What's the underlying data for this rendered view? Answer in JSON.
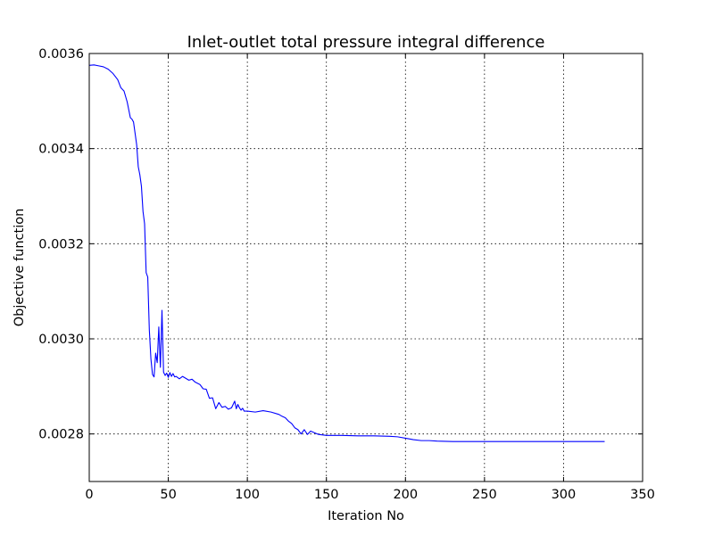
{
  "chart_data": {
    "type": "line",
    "title": "Inlet-outlet total pressure integral difference",
    "xlabel": "Iteration No",
    "ylabel": "Objective function",
    "xlim": [
      0,
      350
    ],
    "ylim": [
      0.0027,
      0.0036
    ],
    "xticks": [
      0,
      50,
      100,
      150,
      200,
      250,
      300,
      350
    ],
    "xtick_labels": [
      "0",
      "50",
      "100",
      "150",
      "200",
      "250",
      "300",
      "350"
    ],
    "yticks": [
      0.0028,
      0.003,
      0.0032,
      0.0034,
      0.0036
    ],
    "ytick_labels": [
      "0.0028",
      "0.0030",
      "0.0032",
      "0.0034",
      "0.0036"
    ],
    "grid": true,
    "series": [
      {
        "color": "#0000ff",
        "x": [
          0,
          3,
          6,
          9,
          12,
          15,
          18,
          20,
          22,
          24,
          26,
          27,
          28,
          29,
          30,
          31,
          32,
          33,
          34,
          35,
          36,
          37,
          38,
          39,
          40,
          41,
          42,
          43,
          44,
          45,
          46,
          47,
          48,
          49,
          50,
          51,
          52,
          53,
          54,
          55,
          57,
          59,
          61,
          63,
          65,
          67,
          70,
          72,
          74,
          76,
          78,
          80,
          82,
          84,
          86,
          88,
          90,
          92,
          93,
          94,
          95,
          96,
          97,
          98,
          100,
          105,
          110,
          115,
          120,
          122,
          124,
          126,
          128,
          130,
          132,
          134,
          136,
          138,
          140,
          145,
          150,
          160,
          170,
          180,
          190,
          195,
          200,
          205,
          210,
          215,
          220,
          230,
          240,
          250,
          260,
          270,
          280,
          290,
          300,
          310,
          320,
          326
        ],
        "y": [
          0.003575,
          0.003576,
          0.003574,
          0.003572,
          0.003567,
          0.003558,
          0.003545,
          0.003528,
          0.003521,
          0.003498,
          0.003465,
          0.003462,
          0.003456,
          0.003432,
          0.003408,
          0.003362,
          0.003345,
          0.003321,
          0.003268,
          0.003242,
          0.003139,
          0.00313,
          0.003019,
          0.002958,
          0.002925,
          0.00292,
          0.00297,
          0.00295,
          0.003025,
          0.00294,
          0.00306,
          0.00293,
          0.002923,
          0.002928,
          0.002919,
          0.002929,
          0.002921,
          0.002927,
          0.00292,
          0.002921,
          0.002916,
          0.002921,
          0.002917,
          0.002913,
          0.002915,
          0.002909,
          0.002904,
          0.002895,
          0.002894,
          0.002875,
          0.002876,
          0.002853,
          0.002866,
          0.002856,
          0.002858,
          0.002852,
          0.002855,
          0.002869,
          0.002853,
          0.002862,
          0.002855,
          0.00285,
          0.002854,
          0.002848,
          0.002848,
          0.002846,
          0.002849,
          0.002846,
          0.002841,
          0.002837,
          0.002834,
          0.002827,
          0.002822,
          0.002813,
          0.002809,
          0.0028,
          0.002809,
          0.002799,
          0.002806,
          0.002799,
          0.002797,
          0.002797,
          0.002796,
          0.002796,
          0.002795,
          0.002794,
          0.002791,
          0.002788,
          0.002786,
          0.002786,
          0.002785,
          0.002784,
          0.002784,
          0.002784,
          0.002784,
          0.002784,
          0.002784,
          0.002784,
          0.002784,
          0.002784,
          0.002784,
          0.002784
        ]
      }
    ]
  }
}
